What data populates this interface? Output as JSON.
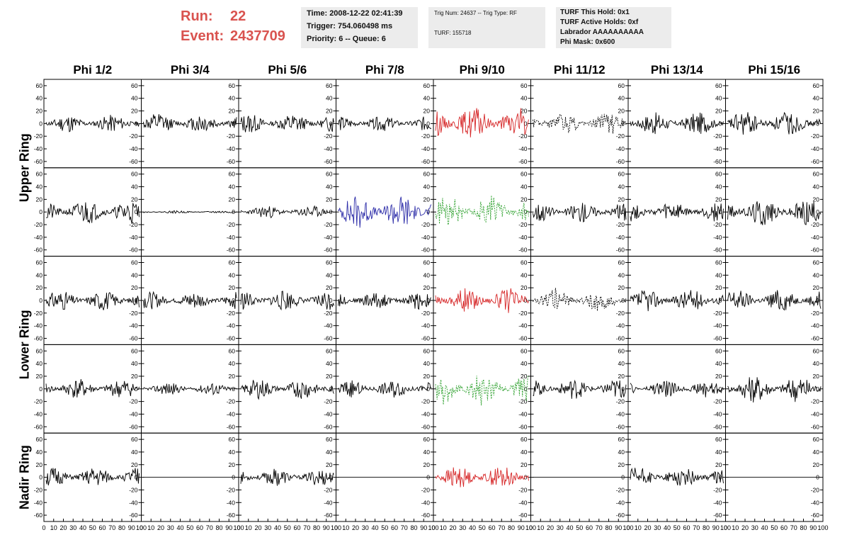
{
  "header": {
    "run_label": "Run:",
    "run_value": "22",
    "event_label": "Event:",
    "event_value": "2437709",
    "time": "Time: 2008-12-22 02:41:39",
    "trigger": "Trigger: 754.060498 ms",
    "priority": "Priority: 6 -- Queue: 6",
    "trig": "Trig Num: 24637 -- Trig Type: RF",
    "turf": "TURF: 155718",
    "turf_hold": "TURF This Hold: 0x1",
    "turf_active": "TURF Active Holds: 0xf",
    "labrador": "Labrador AAAAAAAAAA",
    "phi_mask": "Phi Mask: 0x600"
  },
  "chart_data": {
    "type": "line",
    "columns": [
      "Phi 1/2",
      "Phi 3/4",
      "Phi 5/6",
      "Phi 7/8",
      "Phi 9/10",
      "Phi 11/12",
      "Phi 13/14",
      "Phi 15/16"
    ],
    "rows": [
      "Upper Ring",
      "",
      "Lower Ring",
      "",
      "Nadir Ring"
    ],
    "ylim": [
      -70,
      70
    ],
    "yticks": [
      -60,
      -40,
      -20,
      0,
      20,
      40,
      60
    ],
    "xlim": [
      0,
      100
    ],
    "xtick_labels": [
      "0",
      "10",
      "20",
      "30",
      "40",
      "50",
      "60",
      "70",
      "80",
      "90",
      "100"
    ],
    "colors": {
      "normal": "#000000",
      "red": "#d62728",
      "blue": "#2c2ca8",
      "green": "#2ca02c",
      "black_dashed": "#000000"
    },
    "panels": [
      [
        {
          "style": "normal",
          "amp": 14,
          "seed": 11
        },
        {
          "style": "normal",
          "amp": 16,
          "seed": 12
        },
        {
          "style": "normal",
          "amp": 16,
          "seed": 13
        },
        {
          "style": "normal",
          "amp": 12,
          "seed": 14
        },
        {
          "style": "red",
          "amp": 26,
          "seed": 15
        },
        {
          "style": "black_dashed",
          "amp": 20,
          "seed": 16
        },
        {
          "style": "normal",
          "amp": 18,
          "seed": 17
        },
        {
          "style": "normal",
          "amp": 20,
          "seed": 18
        }
      ],
      [
        {
          "style": "normal",
          "amp": 20,
          "seed": 21
        },
        {
          "style": "normal",
          "amp": 2,
          "seed": 22
        },
        {
          "style": "normal",
          "amp": 10,
          "seed": 23
        },
        {
          "style": "blue",
          "amp": 28,
          "seed": 24
        },
        {
          "style": "green",
          "amp": 28,
          "seed": 25
        },
        {
          "style": "normal",
          "amp": 16,
          "seed": 26
        },
        {
          "style": "normal",
          "amp": 16,
          "seed": 27
        },
        {
          "style": "normal",
          "amp": 22,
          "seed": 28
        }
      ],
      [
        {
          "style": "normal",
          "amp": 16,
          "seed": 31
        },
        {
          "style": "normal",
          "amp": 14,
          "seed": 32
        },
        {
          "style": "normal",
          "amp": 16,
          "seed": 33
        },
        {
          "style": "normal",
          "amp": 14,
          "seed": 34
        },
        {
          "style": "red",
          "amp": 20,
          "seed": 35
        },
        {
          "style": "black_dashed",
          "amp": 20,
          "seed": 36
        },
        {
          "style": "normal",
          "amp": 18,
          "seed": 37
        },
        {
          "style": "normal",
          "amp": 18,
          "seed": 38
        }
      ],
      [
        {
          "style": "normal",
          "amp": 16,
          "seed": 41
        },
        {
          "style": "normal",
          "amp": 10,
          "seed": 42
        },
        {
          "style": "normal",
          "amp": 16,
          "seed": 43
        },
        {
          "style": "normal",
          "amp": 14,
          "seed": 44
        },
        {
          "style": "green",
          "amp": 28,
          "seed": 45
        },
        {
          "style": "normal",
          "amp": 16,
          "seed": 46
        },
        {
          "style": "normal",
          "amp": 14,
          "seed": 47
        },
        {
          "style": "normal",
          "amp": 22,
          "seed": 48
        }
      ],
      [
        {
          "style": "normal",
          "amp": 16,
          "seed": 51
        },
        {
          "style": "flat",
          "amp": 0,
          "seed": 52
        },
        {
          "style": "normal",
          "amp": 14,
          "seed": 53
        },
        {
          "style": "flat",
          "amp": 0,
          "seed": 54
        },
        {
          "style": "red",
          "amp": 18,
          "seed": 55
        },
        {
          "style": "flat",
          "amp": 0,
          "seed": 56
        },
        {
          "style": "normal",
          "amp": 16,
          "seed": 57
        },
        {
          "style": "flat",
          "amp": 0,
          "seed": 58
        }
      ]
    ]
  }
}
